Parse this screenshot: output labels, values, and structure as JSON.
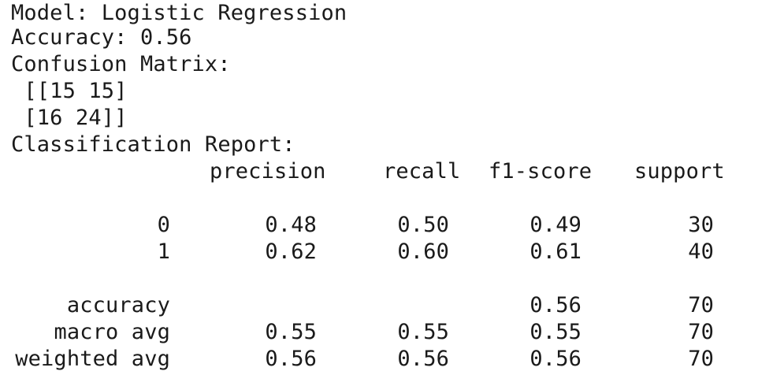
{
  "header": {
    "model_line": "Model: Logistic Regression",
    "accuracy_line": "Accuracy: 0.56",
    "confusion_title": "Confusion Matrix:",
    "confusion_rows": [
      " [[15 15]",
      " [16 24]]"
    ],
    "report_title": "Classification Report:"
  },
  "report": {
    "columns": [
      "precision",
      "recall",
      "f1-score",
      "support"
    ],
    "rows": [
      {
        "label": "0",
        "precision": "0.48",
        "recall": "0.50",
        "f1": "0.49",
        "support": "30"
      },
      {
        "label": "1",
        "precision": "0.62",
        "recall": "0.60",
        "f1": "0.61",
        "support": "40"
      }
    ],
    "summary": [
      {
        "label": "accuracy",
        "precision": "",
        "recall": "",
        "f1": "0.56",
        "support": "70"
      },
      {
        "label": "macro avg",
        "precision": "0.55",
        "recall": "0.55",
        "f1": "0.55",
        "support": "70"
      },
      {
        "label": "weighted avg",
        "precision": "0.56",
        "recall": "0.56",
        "f1": "0.56",
        "support": "70"
      }
    ]
  }
}
